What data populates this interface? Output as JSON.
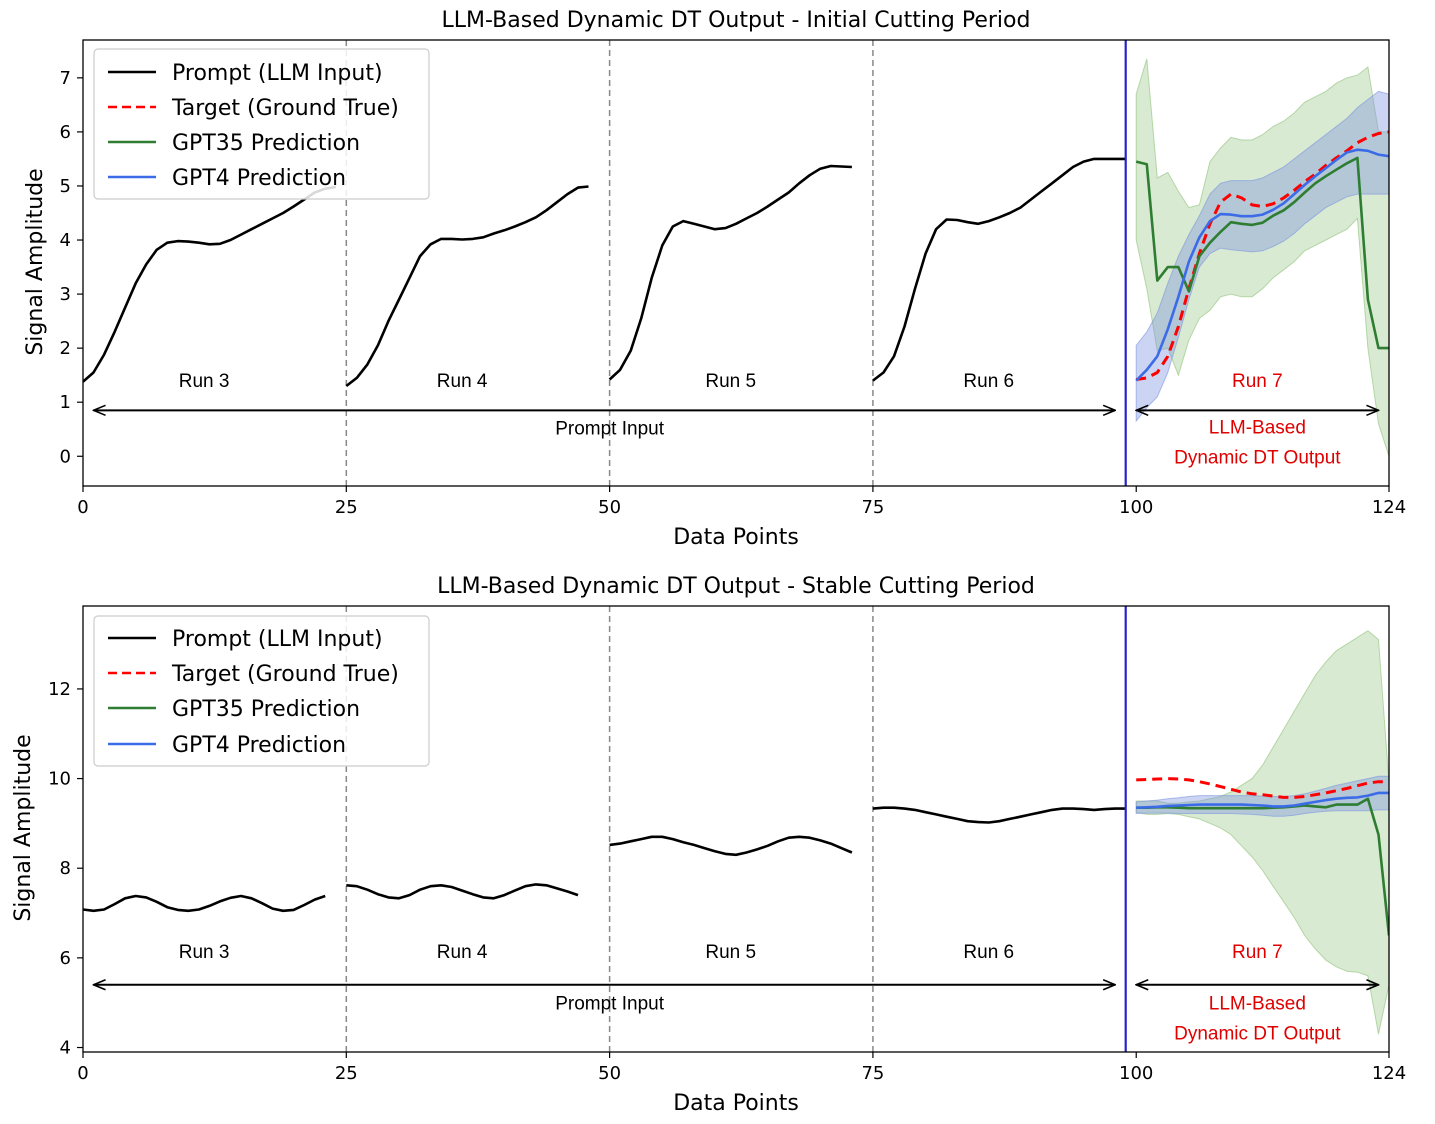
{
  "colors": {
    "prompt": "#000000",
    "target": "#ff0000",
    "gpt35": "#2e7d32",
    "gpt4": "#3c6be8",
    "gpt35_band": "#8fc27a",
    "gpt4_band": "#7d94e0",
    "divider": "#2323c8",
    "dashed": "#888888"
  },
  "chart_data": [
    {
      "type": "line",
      "title": "LLM-Based Dynamic DT Output - Initial Cutting Period",
      "xlabel": "Data Points",
      "ylabel": "Signal Amplitude",
      "xlim": [
        0,
        124
      ],
      "ylim": [
        -0.55,
        7.7
      ],
      "xticks": [
        0,
        25,
        50,
        75,
        100,
        124
      ],
      "yticks": [
        0,
        1,
        2,
        3,
        4,
        5,
        6,
        7
      ],
      "dashed_vlines": [
        25,
        50,
        75
      ],
      "divider_x": 99,
      "legend": {
        "position": "top-left",
        "entries": [
          "Prompt (LLM Input)",
          "Target (Ground True)",
          "GPT35 Prediction",
          "GPT4 Prediction"
        ]
      },
      "prompt_runs": [
        {
          "x0": 0,
          "values": [
            1.38,
            1.55,
            1.88,
            2.3,
            2.75,
            3.2,
            3.55,
            3.82,
            3.95,
            3.98,
            3.97,
            3.95,
            3.92,
            3.93,
            4.0,
            4.1,
            4.2,
            4.3,
            4.4,
            4.5,
            4.62,
            4.75,
            4.88,
            4.95,
            4.98
          ]
        },
        {
          "x0": 25,
          "values": [
            1.3,
            1.45,
            1.7,
            2.05,
            2.5,
            2.9,
            3.3,
            3.7,
            3.92,
            4.02,
            4.02,
            4.01,
            4.02,
            4.05,
            4.12,
            4.18,
            4.25,
            4.33,
            4.42,
            4.55,
            4.7,
            4.85,
            4.97,
            4.99
          ]
        },
        {
          "x0": 50,
          "values": [
            1.42,
            1.6,
            1.95,
            2.55,
            3.3,
            3.9,
            4.25,
            4.35,
            4.3,
            4.25,
            4.2,
            4.22,
            4.3,
            4.4,
            4.5,
            4.62,
            4.75,
            4.88,
            5.05,
            5.2,
            5.32,
            5.37,
            5.36,
            5.35
          ]
        },
        {
          "x0": 75,
          "values": [
            1.4,
            1.55,
            1.85,
            2.4,
            3.1,
            3.75,
            4.2,
            4.38,
            4.37,
            4.33,
            4.3,
            4.35,
            4.42,
            4.5,
            4.6,
            4.75,
            4.9,
            5.05,
            5.2,
            5.35,
            5.45,
            5.5,
            5.5,
            5.5,
            5.5
          ]
        }
      ],
      "prediction_x": [
        100,
        101,
        102,
        103,
        104,
        105,
        106,
        107,
        108,
        109,
        110,
        111,
        112,
        113,
        114,
        115,
        116,
        117,
        118,
        119,
        120,
        121,
        122,
        123,
        124
      ],
      "series": [
        {
          "name": "Target (Ground True)",
          "style": "dashed",
          "values": [
            1.42,
            1.45,
            1.55,
            1.85,
            2.4,
            3.1,
            3.75,
            4.3,
            4.7,
            4.85,
            4.78,
            4.65,
            4.62,
            4.67,
            4.78,
            4.92,
            5.08,
            5.22,
            5.38,
            5.52,
            5.65,
            5.8,
            5.9,
            5.97,
            6.0
          ]
        },
        {
          "name": "GPT35 Prediction",
          "style": "solid",
          "values": [
            5.45,
            5.4,
            3.25,
            3.5,
            3.5,
            3.05,
            3.7,
            3.95,
            4.15,
            4.33,
            4.3,
            4.28,
            4.32,
            4.45,
            4.55,
            4.7,
            4.88,
            5.05,
            5.18,
            5.3,
            5.42,
            5.52,
            2.9,
            2.0,
            2.0
          ]
        },
        {
          "name": "GPT4 Prediction",
          "style": "solid",
          "values": [
            1.4,
            1.6,
            1.85,
            2.35,
            2.95,
            3.6,
            4.05,
            4.35,
            4.48,
            4.47,
            4.44,
            4.44,
            4.47,
            4.56,
            4.68,
            4.85,
            5.02,
            5.18,
            5.33,
            5.48,
            5.62,
            5.67,
            5.65,
            5.58,
            5.55
          ]
        }
      ],
      "bands": [
        {
          "name": "GPT35 range",
          "upper": [
            6.7,
            7.35,
            5.15,
            5.25,
            4.9,
            4.6,
            4.65,
            5.45,
            5.7,
            5.9,
            5.85,
            5.85,
            5.95,
            6.1,
            6.2,
            6.35,
            6.55,
            6.65,
            6.75,
            6.9,
            7.0,
            7.05,
            7.2,
            6.0,
            6.0
          ],
          "lower": [
            4.0,
            3.1,
            1.95,
            2.0,
            1.5,
            2.15,
            2.55,
            2.7,
            2.95,
            3.0,
            2.95,
            2.95,
            3.1,
            3.3,
            3.45,
            3.6,
            3.8,
            3.9,
            4.0,
            4.1,
            4.2,
            4.4,
            2.0,
            0.6,
            0.0
          ]
        },
        {
          "name": "GPT4 range",
          "upper": [
            2.05,
            2.3,
            2.65,
            3.2,
            3.7,
            4.1,
            4.45,
            4.85,
            5.05,
            5.1,
            5.1,
            5.1,
            5.15,
            5.25,
            5.35,
            5.5,
            5.65,
            5.8,
            5.95,
            6.1,
            6.25,
            6.45,
            6.6,
            6.75,
            6.7
          ],
          "lower": [
            0.65,
            0.9,
            1.1,
            1.55,
            2.2,
            2.9,
            3.5,
            3.75,
            3.85,
            3.82,
            3.8,
            3.78,
            3.8,
            3.88,
            3.98,
            4.12,
            4.3,
            4.45,
            4.6,
            4.7,
            4.8,
            4.85,
            4.85,
            4.85,
            4.85
          ]
        }
      ],
      "annotations": {
        "runs": [
          {
            "label": "Run 3",
            "x": 11.5
          },
          {
            "label": "Run 4",
            "x": 36
          },
          {
            "label": "Run 5",
            "x": 61.5
          },
          {
            "label": "Run 6",
            "x": 86
          }
        ],
        "run_y": 1.28,
        "prompt_arrow": {
          "x0": 1,
          "x1": 98,
          "y": 0.85
        },
        "prompt_label": "Prompt Input",
        "prompt_label_x": 50,
        "prompt_label_y": 0.4,
        "output_run": "Run 7",
        "output_arrow": {
          "x0": 100,
          "x1": 123,
          "y": 0.85
        },
        "output_x": 111.5,
        "output_run_y": 1.28,
        "output_line1": "LLM-Based",
        "output_line1_y": 0.42,
        "output_line2": "Dynamic DT Output",
        "output_line2_y": -0.13
      }
    },
    {
      "type": "line",
      "title": "LLM-Based Dynamic DT Output - Stable Cutting Period",
      "xlabel": "Data Points",
      "ylabel": "Signal Amplitude",
      "xlim": [
        0,
        124
      ],
      "ylim": [
        3.9,
        13.85
      ],
      "xticks": [
        0,
        25,
        50,
        75,
        100,
        124
      ],
      "yticks": [
        4,
        6,
        8,
        10,
        12
      ],
      "dashed_vlines": [
        25,
        50,
        75
      ],
      "divider_x": 99,
      "legend": {
        "position": "top-left",
        "entries": [
          "Prompt (LLM Input)",
          "Target (Ground True)",
          "GPT35 Prediction",
          "GPT4 Prediction"
        ]
      },
      "prompt_runs": [
        {
          "x0": 0,
          "values": [
            7.08,
            7.05,
            7.08,
            7.2,
            7.33,
            7.38,
            7.35,
            7.25,
            7.13,
            7.07,
            7.05,
            7.08,
            7.16,
            7.26,
            7.34,
            7.38,
            7.33,
            7.22,
            7.1,
            7.05,
            7.07,
            7.18,
            7.3,
            7.38
          ]
        },
        {
          "x0": 25,
          "values": [
            7.62,
            7.6,
            7.52,
            7.42,
            7.35,
            7.33,
            7.4,
            7.52,
            7.6,
            7.62,
            7.58,
            7.5,
            7.42,
            7.35,
            7.33,
            7.4,
            7.5,
            7.6,
            7.64,
            7.62,
            7.55,
            7.48,
            7.4
          ]
        },
        {
          "x0": 50,
          "values": [
            8.52,
            8.55,
            8.6,
            8.65,
            8.7,
            8.7,
            8.65,
            8.58,
            8.52,
            8.45,
            8.38,
            8.32,
            8.3,
            8.35,
            8.42,
            8.5,
            8.6,
            8.68,
            8.7,
            8.68,
            8.62,
            8.55,
            8.45,
            8.35
          ]
        },
        {
          "x0": 75,
          "values": [
            9.33,
            9.35,
            9.35,
            9.33,
            9.3,
            9.25,
            9.2,
            9.15,
            9.1,
            9.05,
            9.03,
            9.02,
            9.05,
            9.1,
            9.15,
            9.2,
            9.25,
            9.3,
            9.33,
            9.33,
            9.32,
            9.3,
            9.32,
            9.33,
            9.33
          ]
        }
      ],
      "prediction_x": [
        100,
        101,
        102,
        103,
        104,
        105,
        106,
        107,
        108,
        109,
        110,
        111,
        112,
        113,
        114,
        115,
        116,
        117,
        118,
        119,
        120,
        121,
        122,
        123,
        124
      ],
      "series": [
        {
          "name": "Target (Ground True)",
          "style": "dashed",
          "values": [
            9.97,
            9.98,
            9.99,
            10.0,
            9.99,
            9.97,
            9.93,
            9.88,
            9.82,
            9.76,
            9.7,
            9.66,
            9.64,
            9.61,
            9.58,
            9.58,
            9.6,
            9.64,
            9.68,
            9.73,
            9.78,
            9.84,
            9.9,
            9.93,
            9.93
          ]
        },
        {
          "name": "GPT35 Prediction",
          "style": "solid",
          "values": [
            9.35,
            9.35,
            9.36,
            9.36,
            9.35,
            9.34,
            9.34,
            9.34,
            9.34,
            9.34,
            9.34,
            9.34,
            9.34,
            9.35,
            9.36,
            9.38,
            9.4,
            9.38,
            9.36,
            9.42,
            9.42,
            9.42,
            9.55,
            8.75,
            6.5
          ]
        },
        {
          "name": "GPT4 Prediction",
          "style": "solid",
          "values": [
            9.35,
            9.36,
            9.37,
            9.39,
            9.4,
            9.41,
            9.42,
            9.42,
            9.42,
            9.42,
            9.42,
            9.41,
            9.4,
            9.38,
            9.38,
            9.4,
            9.44,
            9.48,
            9.52,
            9.55,
            9.57,
            9.58,
            9.62,
            9.68,
            9.68
          ]
        }
      ],
      "bands": [
        {
          "name": "GPT35 range",
          "upper": [
            9.5,
            9.5,
            9.5,
            9.45,
            9.45,
            9.48,
            9.5,
            9.55,
            9.6,
            9.7,
            9.85,
            10.0,
            10.3,
            10.7,
            11.1,
            11.5,
            11.9,
            12.3,
            12.6,
            12.85,
            13.0,
            13.15,
            13.3,
            13.1,
            9.9
          ],
          "lower": [
            9.25,
            9.2,
            9.2,
            9.22,
            9.2,
            9.15,
            9.1,
            9.0,
            8.9,
            8.75,
            8.5,
            8.25,
            7.95,
            7.6,
            7.25,
            6.9,
            6.5,
            6.2,
            5.95,
            5.8,
            5.7,
            5.68,
            5.6,
            4.3,
            5.4
          ]
        },
        {
          "name": "GPT4 range",
          "upper": [
            9.48,
            9.5,
            9.52,
            9.55,
            9.57,
            9.6,
            9.62,
            9.62,
            9.62,
            9.62,
            9.62,
            9.62,
            9.61,
            9.6,
            9.6,
            9.62,
            9.66,
            9.72,
            9.78,
            9.85,
            9.9,
            9.95,
            10.0,
            10.05,
            10.05
          ],
          "lower": [
            9.22,
            9.23,
            9.23,
            9.23,
            9.22,
            9.22,
            9.22,
            9.22,
            9.22,
            9.22,
            9.21,
            9.2,
            9.18,
            9.16,
            9.16,
            9.18,
            9.22,
            9.25,
            9.27,
            9.28,
            9.28,
            9.28,
            9.28,
            9.3,
            9.3
          ]
        }
      ],
      "annotations": {
        "runs": [
          {
            "label": "Run 3",
            "x": 11.5
          },
          {
            "label": "Run 4",
            "x": 36
          },
          {
            "label": "Run 5",
            "x": 61.5
          },
          {
            "label": "Run 6",
            "x": 86
          }
        ],
        "run_y": 6.0,
        "prompt_arrow": {
          "x0": 1,
          "x1": 98,
          "y": 5.4
        },
        "prompt_label": "Prompt Input",
        "prompt_label_x": 50,
        "prompt_label_y": 4.85,
        "output_run": "Run 7",
        "output_arrow": {
          "x0": 100,
          "x1": 123,
          "y": 5.4
        },
        "output_x": 111.5,
        "output_run_y": 6.0,
        "output_line1": "LLM-Based",
        "output_line1_y": 4.85,
        "output_line2": "Dynamic DT Output",
        "output_line2_y": 4.18
      }
    }
  ]
}
